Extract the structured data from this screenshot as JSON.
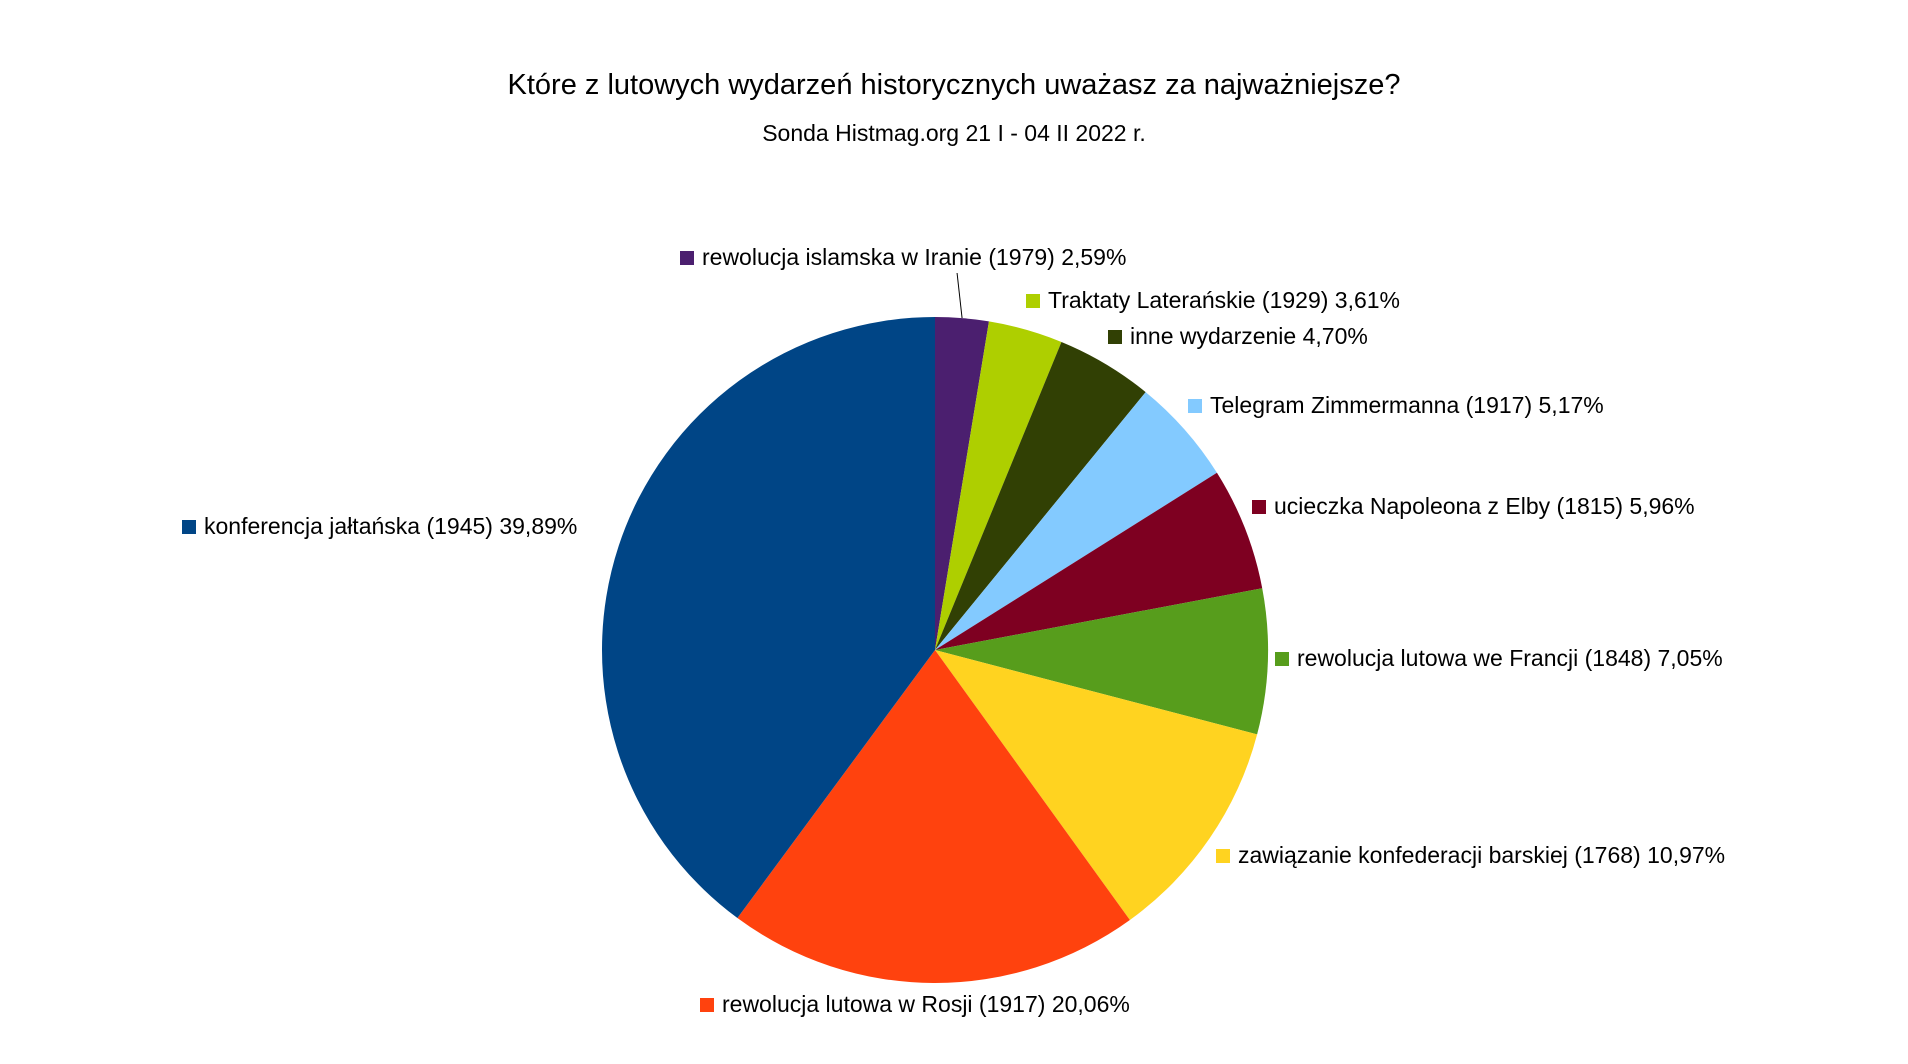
{
  "chart_data": {
    "type": "pie",
    "title": "Które z lutowych wydarzeń historycznych uważasz za najważniejsze?",
    "subtitle": "Sonda Histmag.org 21 I - 04 II 2022 r.",
    "slices": [
      {
        "label": "rewolucja islamska w Iranie (1979)",
        "value": 2.59,
        "display": "2,59%",
        "color": "#4b1f6f"
      },
      {
        "label": "Traktaty Laterańskie (1929)",
        "value": 3.61,
        "display": "3,61%",
        "color": "#aecf00"
      },
      {
        "label": "inne wydarzenie",
        "value": 4.7,
        "display": "4,70%",
        "color": "#314004"
      },
      {
        "label": "Telegram Zimmermanna (1917)",
        "value": 5.17,
        "display": "5,17%",
        "color": "#83caff"
      },
      {
        "label": "ucieczka Napoleona z Elby (1815)",
        "value": 5.96,
        "display": "5,96%",
        "color": "#7e0021"
      },
      {
        "label": "rewolucja lutowa we Francji (1848)",
        "value": 7.05,
        "display": "7,05%",
        "color": "#579d1c"
      },
      {
        "label": "zawiązanie konfederacji barskiej (1768)",
        "value": 10.97,
        "display": "10,97%",
        "color": "#ffd320"
      },
      {
        "label": "rewolucja lutowa w Rosji (1917)",
        "value": 20.06,
        "display": "20,06%",
        "color": "#ff420e"
      },
      {
        "label": "konferencja jałtańska (1945)",
        "value": 39.89,
        "display": "39,89%",
        "color": "#004586"
      }
    ]
  }
}
